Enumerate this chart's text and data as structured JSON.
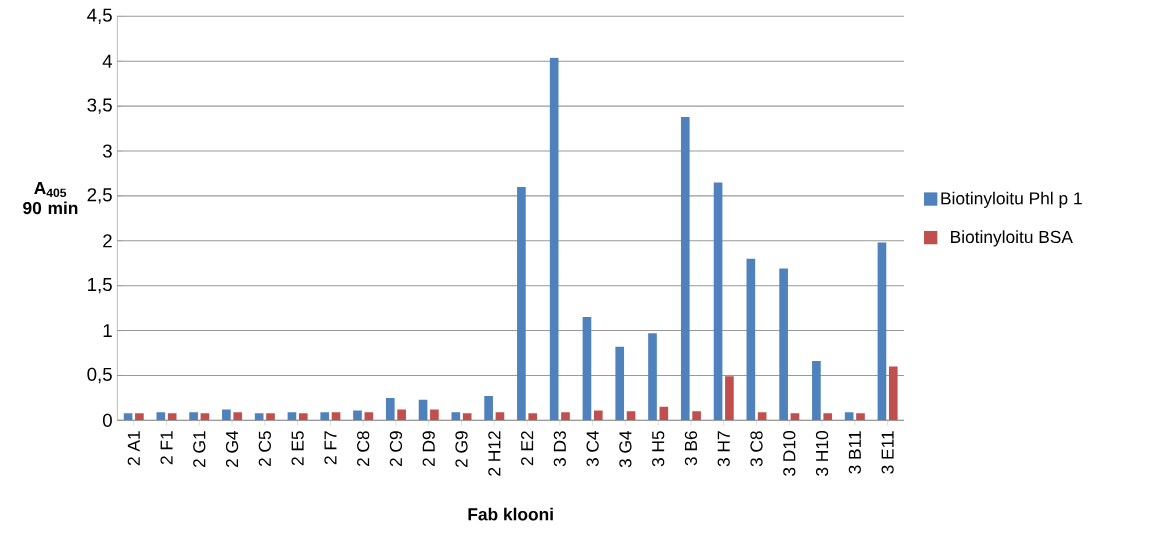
{
  "chart_data": {
    "type": "bar",
    "xlabel": "Fab klooni",
    "ylabel": "A$_{405}$ 90 min",
    "categories": [
      "2 A1",
      "2 F1",
      "2 G1",
      "2 G4",
      "2 C5",
      "2 E5",
      "2 F7",
      "2 C8",
      "2 C9",
      "2 D9",
      "2 G9",
      "2 H12",
      "2 E2",
      "3 D3",
      "3 C4",
      "3 G4",
      "3 H5",
      "3 B6",
      "3 H7",
      "3 C8",
      "3 D10",
      "3 H10",
      "3 B11",
      "3 E11"
    ],
    "series": [
      {
        "name": "Biotinyloitu Phl p 1",
        "color": "#4f81bd",
        "values": [
          0.08,
          0.09,
          0.09,
          0.12,
          0.08,
          0.09,
          0.09,
          0.11,
          0.25,
          0.23,
          0.09,
          0.27,
          2.6,
          4.04,
          1.15,
          0.82,
          0.97,
          3.38,
          2.65,
          1.8,
          1.69,
          0.66,
          0.09,
          1.98
        ]
      },
      {
        "name": "Biotinyloitu BSA",
        "color": "#c0504d",
        "values": [
          0.08,
          0.08,
          0.08,
          0.09,
          0.08,
          0.08,
          0.09,
          0.09,
          0.12,
          0.12,
          0.08,
          0.09,
          0.08,
          0.09,
          0.11,
          0.1,
          0.15,
          0.1,
          0.49,
          0.09,
          0.08,
          0.08,
          0.08,
          0.6
        ]
      }
    ],
    "ylim": [
      0,
      4.5
    ],
    "yticks": [
      {
        "value": 0,
        "label": "0"
      },
      {
        "value": 0.5,
        "label": "0,5"
      },
      {
        "value": 1,
        "label": "1"
      },
      {
        "value": 1.5,
        "label": "1,5"
      },
      {
        "value": 2,
        "label": "2"
      },
      {
        "value": 2.5,
        "label": "2,5"
      },
      {
        "value": 3,
        "label": "3"
      },
      {
        "value": 3.5,
        "label": "3,5"
      },
      {
        "value": 4,
        "label": "4"
      },
      {
        "value": 4.5,
        "label": "4,5"
      }
    ],
    "grid": "y",
    "legend": "right"
  }
}
